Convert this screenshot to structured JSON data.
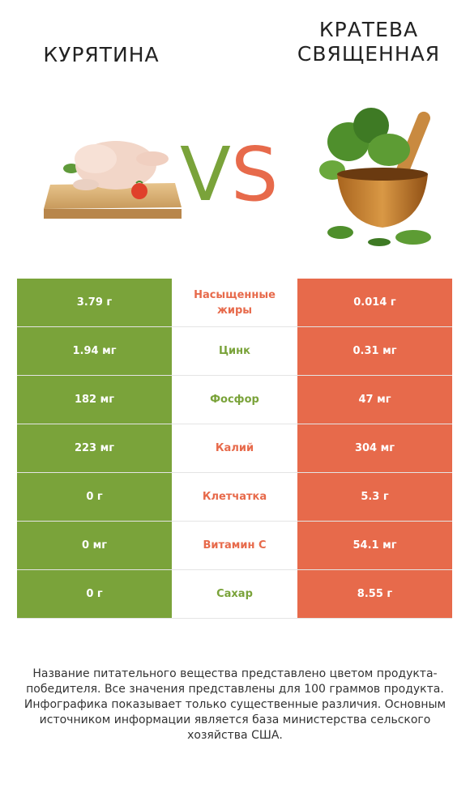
{
  "header": {
    "left_title": "КУРЯТИНА",
    "right_title": "КРАТЕВА СВЯЩЕННАЯ",
    "vs_v": "V",
    "vs_s": "S"
  },
  "colors": {
    "left_winner": "#7aa33a",
    "right_winner": "#e76a4b"
  },
  "rows": [
    {
      "left": "3.79 г",
      "name": "Насыщенные жиры",
      "right": "0.014 г",
      "winner": "right"
    },
    {
      "left": "1.94 мг",
      "name": "Цинк",
      "right": "0.31 мг",
      "winner": "left"
    },
    {
      "left": "182 мг",
      "name": "Фосфор",
      "right": "47 мг",
      "winner": "left"
    },
    {
      "left": "223 мг",
      "name": "Калий",
      "right": "304 мг",
      "winner": "right"
    },
    {
      "left": "0 г",
      "name": "Клетчатка",
      "right": "5.3 г",
      "winner": "right"
    },
    {
      "left": "0 мг",
      "name": "Витамин C",
      "right": "54.1 мг",
      "winner": "right"
    },
    {
      "left": "0 г",
      "name": "Сахар",
      "right": "8.55 г",
      "winner": "left"
    }
  ],
  "footnote": "Название питательного вещества представлено цветом продукта-победителя. Все значения представлены для 100 граммов продукта. Инфографика показывает только существенные различия. Основным источником информации является база министерства сельского хозяйства США."
}
